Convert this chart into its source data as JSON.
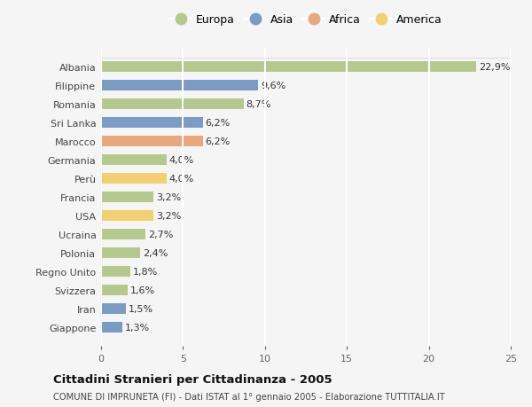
{
  "countries": [
    "Albania",
    "Filippine",
    "Romania",
    "Sri Lanka",
    "Marocco",
    "Germania",
    "Perù",
    "Francia",
    "USA",
    "Ucraina",
    "Polonia",
    "Regno Unito",
    "Svizzera",
    "Iran",
    "Giappone"
  ],
  "values": [
    22.9,
    9.6,
    8.7,
    6.2,
    6.2,
    4.0,
    4.0,
    3.2,
    3.2,
    2.7,
    2.4,
    1.8,
    1.6,
    1.5,
    1.3
  ],
  "continents": [
    "Europa",
    "Asia",
    "Europa",
    "Asia",
    "Africa",
    "Europa",
    "America",
    "Europa",
    "America",
    "Europa",
    "Europa",
    "Europa",
    "Europa",
    "Asia",
    "Asia"
  ],
  "continent_colors": {
    "Europa": "#b5c98e",
    "Asia": "#7a9cc4",
    "Africa": "#e8a87c",
    "America": "#f0d070"
  },
  "legend_order": [
    "Europa",
    "Asia",
    "Africa",
    "America"
  ],
  "title": "Cittadini Stranieri per Cittadinanza - 2005",
  "subtitle": "COMUNE DI IMPRUNETA (FI) - Dati ISTAT al 1° gennaio 2005 - Elaborazione TUTTITALIA.IT",
  "xlim": [
    0,
    25
  ],
  "xticks": [
    0,
    5,
    10,
    15,
    20,
    25
  ],
  "background_color": "#f5f5f5",
  "plot_bg_color": "#f5f5f5",
  "grid_color": "#ffffff",
  "bar_height": 0.55,
  "label_fontsize": 8.0,
  "ytick_fontsize": 8.0,
  "xtick_fontsize": 8.0
}
